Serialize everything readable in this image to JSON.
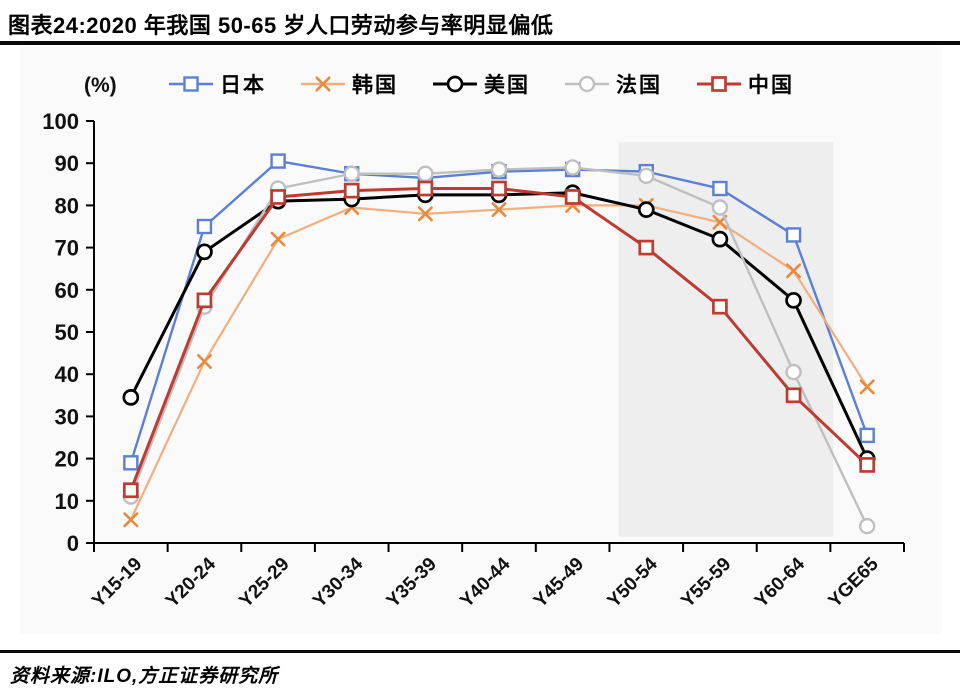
{
  "header": {
    "title": "图表24:2020 年我国 50-65 岁人口劳动参与率明显偏低"
  },
  "footer": {
    "source": "资料来源:ILO,方正证券研究所"
  },
  "chart_data": {
    "type": "line",
    "title": "图表24:2020 年我国 50-65 岁人口劳动参与率明显偏低",
    "unit_label": "(%)",
    "categories": [
      "Y15-19",
      "Y20-24",
      "Y25-29",
      "Y30-34",
      "Y35-39",
      "Y40-44",
      "Y45-49",
      "Y50-54",
      "Y55-59",
      "Y60-64",
      "YGE65"
    ],
    "series": [
      {
        "key": "japan",
        "name": "日本",
        "color": "#5B7FD6",
        "marker": "square",
        "line_width": 2.4,
        "values": [
          19,
          75,
          90.5,
          87.5,
          86.5,
          88,
          88.5,
          88,
          84,
          73,
          25.5
        ]
      },
      {
        "key": "korea",
        "name": "韩国",
        "color": "#F2AE7E",
        "marker": "x",
        "marker_color": "#E78A3F",
        "line_width": 2.2,
        "values": [
          5.5,
          43,
          72,
          79.5,
          78,
          79,
          80,
          80,
          76,
          64.5,
          37
        ]
      },
      {
        "key": "usa",
        "name": "美国",
        "color": "#000000",
        "marker": "circle",
        "line_width": 3,
        "values": [
          34.5,
          69,
          81,
          81.5,
          82.5,
          82.5,
          83,
          79,
          72,
          57.5,
          20
        ]
      },
      {
        "key": "france",
        "name": "法国",
        "color": "#BFBFBF",
        "marker": "circle",
        "line_width": 2.4,
        "values": [
          11,
          56,
          84,
          87.5,
          87.5,
          88.5,
          89,
          87,
          79.5,
          40.5,
          4
        ]
      },
      {
        "key": "china",
        "name": "中国",
        "color": "#BE3B31",
        "marker": "square",
        "line_width": 3,
        "values": [
          12.5,
          57.5,
          82,
          83.5,
          84,
          84,
          82,
          70,
          56,
          35,
          18.5
        ]
      }
    ],
    "ylim": [
      0,
      100
    ],
    "ytick_step": 10,
    "yticks": [
      0,
      10,
      20,
      30,
      40,
      50,
      60,
      70,
      80,
      90,
      100
    ],
    "grid": false,
    "legend_position": "top",
    "highlight_band": {
      "from_category": "Y50-54",
      "to_category": "Y60-64",
      "top_value": 95,
      "bottom_value": 1.5,
      "color": "#EEEEEE"
    }
  }
}
